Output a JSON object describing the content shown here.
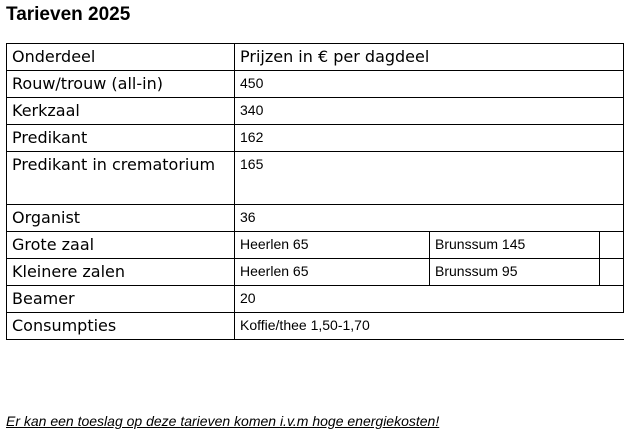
{
  "title": "Tarieven 2025",
  "table": {
    "header": {
      "col1": "Onderdeel",
      "col2": "Prijzen in € per dagdeel"
    },
    "rows": [
      {
        "label": "Rouw/trouw (all-in)",
        "value": "450"
      },
      {
        "label": "Kerkzaal",
        "value": "340"
      },
      {
        "label": "Predikant",
        "value": "162"
      },
      {
        "label": "Predikant in crematorium",
        "value": "165"
      },
      {
        "label": "Organist",
        "value": "36"
      },
      {
        "label": "Grote zaal",
        "value": "Heerlen 65",
        "value2": "Brunssum 145"
      },
      {
        "label": "Kleinere zalen",
        "value": "Heerlen 65",
        "value2": "Brunssum 95"
      },
      {
        "label": "Beamer",
        "value": "20"
      },
      {
        "label": "Consumpties",
        "value": "Koffie/thee 1,50-1,70"
      }
    ]
  },
  "note": "Er kan een toeslag op deze tarieven komen i.v.m hoge energiekosten!"
}
